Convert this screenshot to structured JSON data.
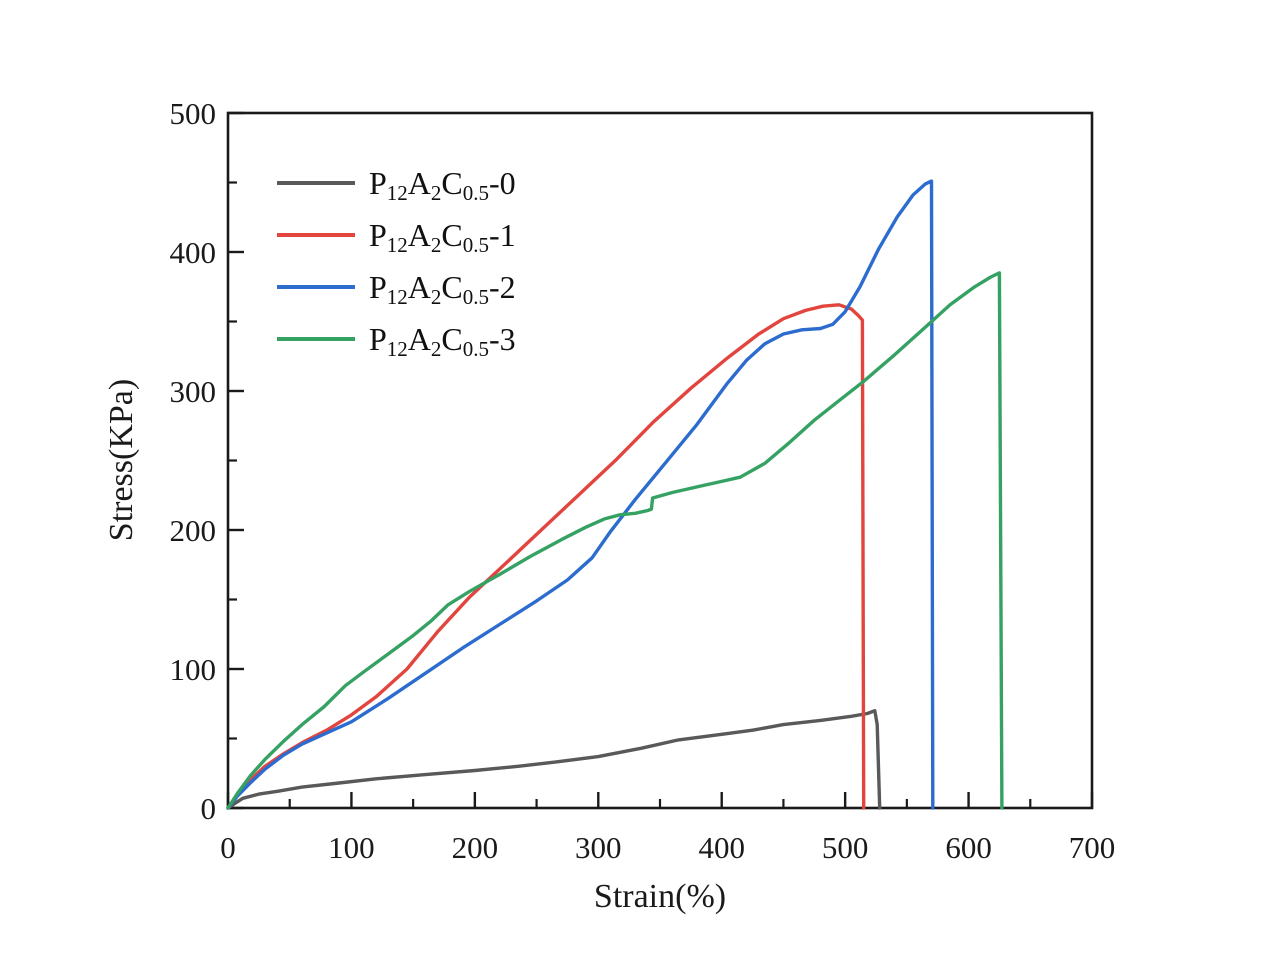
{
  "figure": {
    "background": "#ffffff",
    "frame_color": "#1a1a1a",
    "text_color": "#1a1a1a"
  },
  "chart_data": {
    "type": "line",
    "title": "",
    "xlabel": "Strain(%)",
    "ylabel": "Stress(KPa)",
    "xlim": [
      0,
      700
    ],
    "ylim": [
      0,
      500
    ],
    "x_major_ticks": [
      0,
      100,
      200,
      300,
      400,
      500,
      600,
      700
    ],
    "x_minor_ticks": [
      50,
      150,
      250,
      350,
      450,
      550,
      650
    ],
    "y_major_ticks": [
      0,
      100,
      200,
      300,
      400,
      500
    ],
    "y_minor_ticks": [
      50,
      150,
      250,
      350,
      450
    ],
    "grid": false,
    "legend_position": "upper-left-inside",
    "series": [
      {
        "name": "P12A2C0.5-0",
        "label_parts": [
          {
            "t": "P"
          },
          {
            "t": "12",
            "sub": true
          },
          {
            "t": "A"
          },
          {
            "t": "2",
            "sub": true
          },
          {
            "t": "C"
          },
          {
            "t": "0.5",
            "sub": true
          },
          {
            "t": "-0"
          }
        ],
        "color": "#595959",
        "points": [
          [
            0,
            0
          ],
          [
            5,
            3
          ],
          [
            12,
            7
          ],
          [
            25,
            10
          ],
          [
            40,
            12
          ],
          [
            60,
            15
          ],
          [
            90,
            18
          ],
          [
            120,
            21
          ],
          [
            160,
            24
          ],
          [
            200,
            27
          ],
          [
            235,
            30
          ],
          [
            265,
            33
          ],
          [
            300,
            37
          ],
          [
            335,
            43
          ],
          [
            365,
            49
          ],
          [
            400,
            53
          ],
          [
            425,
            56
          ],
          [
            450,
            60
          ],
          [
            480,
            63
          ],
          [
            505,
            66
          ],
          [
            518,
            68
          ],
          [
            524,
            70
          ],
          [
            526,
            60
          ],
          [
            528,
            0
          ]
        ]
      },
      {
        "name": "P12A2C0.5-1",
        "label_parts": [
          {
            "t": "P"
          },
          {
            "t": "12",
            "sub": true
          },
          {
            "t": "A"
          },
          {
            "t": "2",
            "sub": true
          },
          {
            "t": "C"
          },
          {
            "t": "0.5",
            "sub": true
          },
          {
            "t": "-1"
          }
        ],
        "color": "#e2453e",
        "points": [
          [
            0,
            0
          ],
          [
            8,
            10
          ],
          [
            18,
            20
          ],
          [
            30,
            30
          ],
          [
            45,
            39
          ],
          [
            60,
            47
          ],
          [
            80,
            56
          ],
          [
            100,
            67
          ],
          [
            120,
            80
          ],
          [
            145,
            100
          ],
          [
            170,
            127
          ],
          [
            196,
            152
          ],
          [
            225,
            176
          ],
          [
            255,
            201
          ],
          [
            285,
            226
          ],
          [
            315,
            251
          ],
          [
            345,
            278
          ],
          [
            375,
            302
          ],
          [
            405,
            324
          ],
          [
            430,
            341
          ],
          [
            450,
            352
          ],
          [
            468,
            358
          ],
          [
            482,
            361
          ],
          [
            495,
            362
          ],
          [
            505,
            359
          ],
          [
            511,
            354
          ],
          [
            514,
            351
          ],
          [
            515,
            0
          ]
        ]
      },
      {
        "name": "P12A2C0.5-2",
        "label_parts": [
          {
            "t": "P"
          },
          {
            "t": "12",
            "sub": true
          },
          {
            "t": "A"
          },
          {
            "t": "2",
            "sub": true
          },
          {
            "t": "C"
          },
          {
            "t": "0.5",
            "sub": true
          },
          {
            "t": "-2"
          }
        ],
        "color": "#2c6cce",
        "points": [
          [
            0,
            0
          ],
          [
            8,
            9
          ],
          [
            18,
            18
          ],
          [
            30,
            28
          ],
          [
            45,
            38
          ],
          [
            60,
            46
          ],
          [
            80,
            54
          ],
          [
            100,
            62
          ],
          [
            130,
            79
          ],
          [
            160,
            97
          ],
          [
            190,
            115
          ],
          [
            220,
            132
          ],
          [
            250,
            149
          ],
          [
            275,
            164
          ],
          [
            295,
            180
          ],
          [
            310,
            199
          ],
          [
            330,
            222
          ],
          [
            355,
            249
          ],
          [
            380,
            276
          ],
          [
            404,
            305
          ],
          [
            420,
            322
          ],
          [
            435,
            334
          ],
          [
            450,
            341
          ],
          [
            465,
            344
          ],
          [
            480,
            345
          ],
          [
            490,
            348
          ],
          [
            500,
            357
          ],
          [
            512,
            375
          ],
          [
            527,
            402
          ],
          [
            542,
            425
          ],
          [
            555,
            441
          ],
          [
            565,
            449
          ],
          [
            570,
            451
          ],
          [
            571,
            0
          ]
        ]
      },
      {
        "name": "P12A2C0.5-3",
        "label_parts": [
          {
            "t": "P"
          },
          {
            "t": "12",
            "sub": true
          },
          {
            "t": "A"
          },
          {
            "t": "2",
            "sub": true
          },
          {
            "t": "C"
          },
          {
            "t": "0.5",
            "sub": true
          },
          {
            "t": "-3"
          }
        ],
        "color": "#35a264",
        "points": [
          [
            0,
            0
          ],
          [
            8,
            11
          ],
          [
            18,
            23
          ],
          [
            30,
            35
          ],
          [
            45,
            48
          ],
          [
            60,
            60
          ],
          [
            78,
            73
          ],
          [
            95,
            88
          ],
          [
            110,
            98
          ],
          [
            130,
            111
          ],
          [
            150,
            124
          ],
          [
            165,
            135
          ],
          [
            178,
            146
          ],
          [
            196,
            156
          ],
          [
            220,
            168
          ],
          [
            245,
            181
          ],
          [
            270,
            193
          ],
          [
            290,
            202
          ],
          [
            305,
            208
          ],
          [
            318,
            211
          ],
          [
            330,
            212
          ],
          [
            340,
            214
          ],
          [
            343,
            215
          ],
          [
            344,
            223
          ],
          [
            360,
            227
          ],
          [
            380,
            231
          ],
          [
            400,
            235
          ],
          [
            415,
            238
          ],
          [
            435,
            248
          ],
          [
            455,
            263
          ],
          [
            475,
            279
          ],
          [
            495,
            293
          ],
          [
            515,
            307
          ],
          [
            540,
            326
          ],
          [
            565,
            346
          ],
          [
            585,
            362
          ],
          [
            605,
            375
          ],
          [
            618,
            382
          ],
          [
            625,
            385
          ],
          [
            627,
            0
          ]
        ]
      }
    ]
  }
}
